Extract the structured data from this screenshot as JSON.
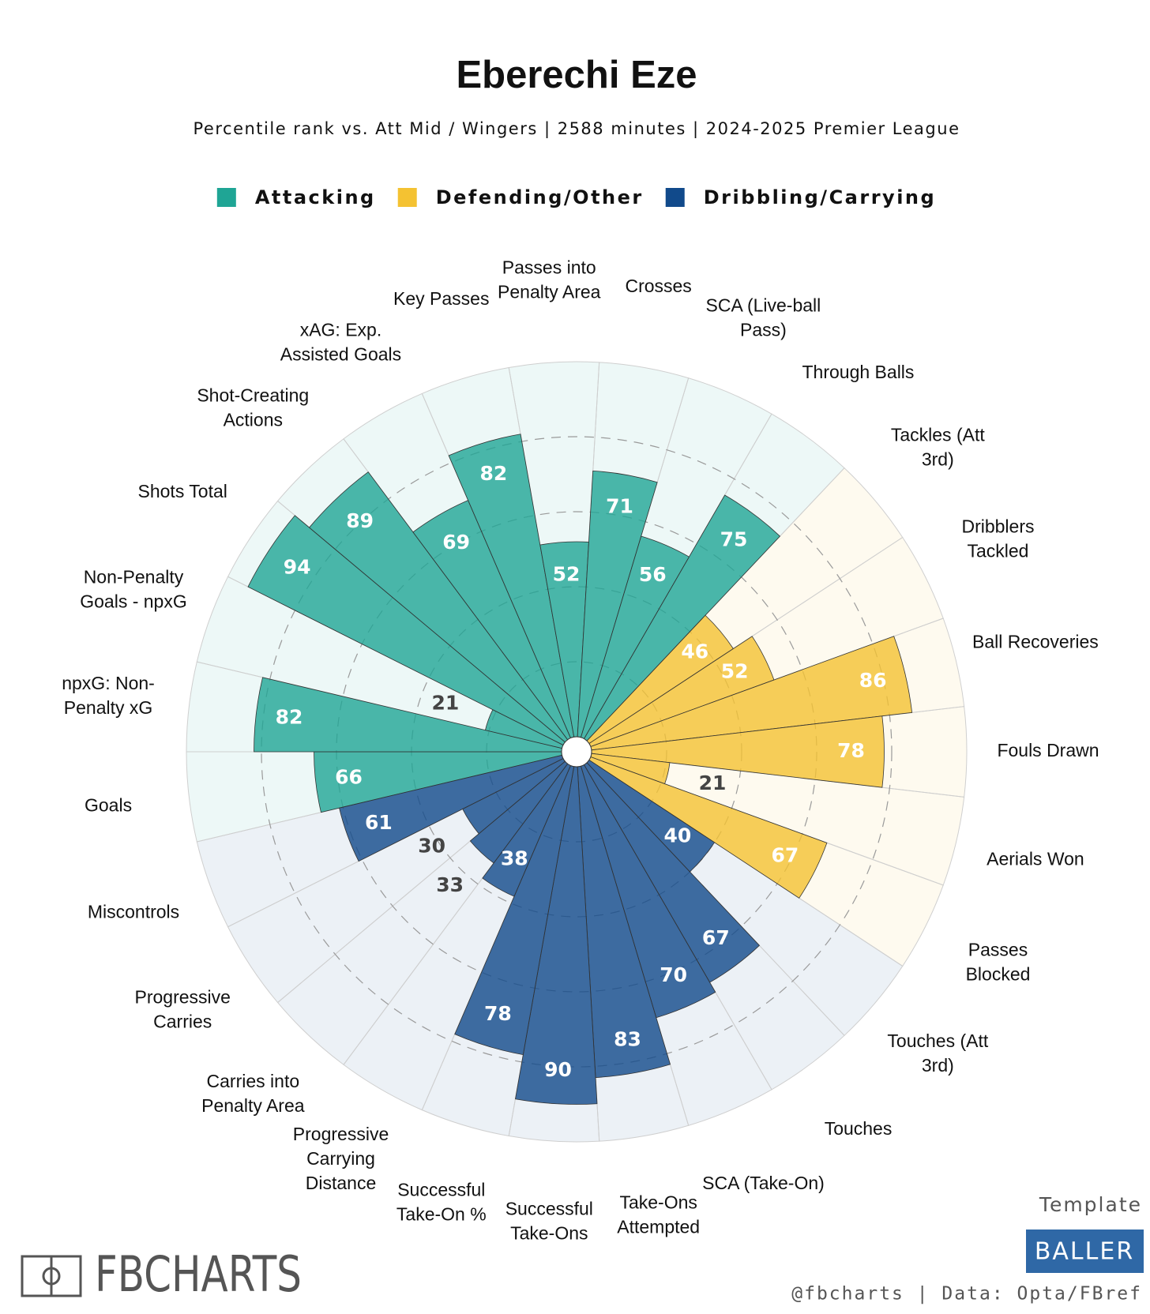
{
  "chart_data": {
    "type": "pizza",
    "title": "Eberechi Eze",
    "subtitle": "Percentile rank vs. Att Mid / Wingers | 2588 minutes | 2024-2025 Premier League",
    "rlim": [
      0,
      100
    ],
    "rticks": [
      20,
      40,
      60,
      80
    ],
    "series": [
      {
        "name": "Attacking",
        "color": "#1fa595",
        "categories": [
          "Goals",
          "npxG: Non-\nPenalty xG",
          "Non-Penalty\nGoals - npxG",
          "Shots Total",
          "Shot-Creating\nActions",
          "xAG: Exp.\nAssisted Goals",
          "Key Passes",
          "Passes into\nPenalty Area",
          "Crosses",
          "SCA (Live-ball\nPass)",
          "Through Balls"
        ],
        "values": [
          66,
          82,
          21,
          94,
          89,
          69,
          82,
          52,
          71,
          56,
          75
        ]
      },
      {
        "name": "Defending/Other",
        "color": "#f4c232",
        "categories": [
          "Tackles (Att\n3rd)",
          "Dribblers\nTackled",
          "Ball Recoveries",
          "Fouls Drawn",
          "Aerials Won",
          "Passes\nBlocked"
        ],
        "values": [
          46,
          52,
          86,
          78,
          21,
          67
        ]
      },
      {
        "name": "Dribbling/Carrying",
        "color": "#114a8b",
        "categories": [
          "Touches (Att\n3rd)",
          "Touches",
          "SCA (Take-On)",
          "Take-Ons\nAttempted",
          "Successful\nTake-Ons",
          "Successful\nTake-On %",
          "Progressive\nCarrying\nDistance",
          "Carries into\nPenalty Area",
          "Progressive\nCarries",
          "Miscontrols"
        ],
        "values": [
          40,
          67,
          70,
          83,
          90,
          78,
          38,
          33,
          30,
          61
        ]
      }
    ]
  },
  "branding": {
    "logo": "FBCHARTS",
    "template_label": "Template",
    "template": "BALLER",
    "credit": "@fbcharts | Data: Opta/FBref"
  }
}
